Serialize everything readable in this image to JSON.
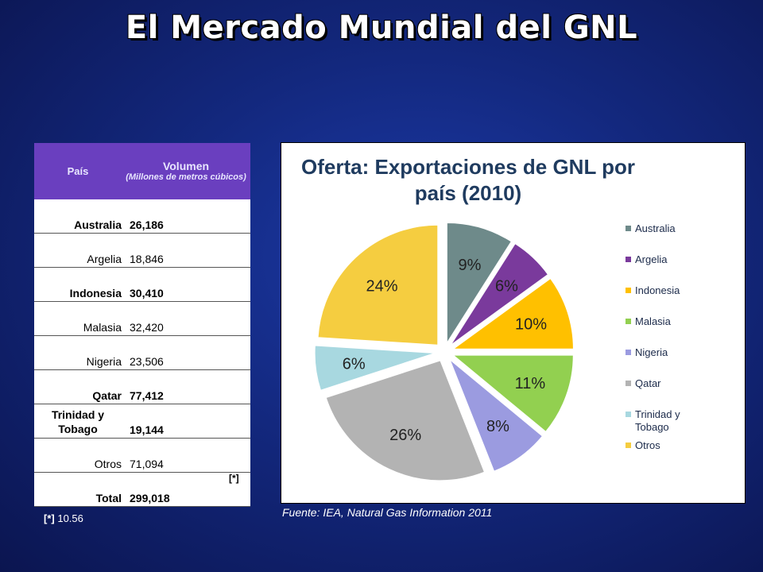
{
  "title": "El Mercado Mundial del GNL",
  "table": {
    "header_country": "País",
    "header_volume": "Volumen",
    "header_unit": "(Millones de metros cúbicos)",
    "rows": [
      {
        "country": "Australia",
        "volume": "26,186",
        "note": ""
      },
      {
        "country": "Argelia",
        "volume": "18,846",
        "note": ""
      },
      {
        "country": "Indonesia",
        "volume": "30,410",
        "note": ""
      },
      {
        "country": "Malasia",
        "volume": "32,420",
        "note": ""
      },
      {
        "country": "Nigeria",
        "volume": "23,506",
        "note": ""
      },
      {
        "country": "Qatar",
        "volume": "77,412",
        "note": ""
      },
      {
        "country": "Trinidad y Tobago",
        "volume": "19,144",
        "note": ""
      },
      {
        "country": "Otros",
        "volume": "71,094",
        "note": ""
      },
      {
        "country": "Total",
        "volume": "299,018",
        "note": "[*]"
      }
    ]
  },
  "footnote": {
    "mark": "[*]",
    "text": "10.56"
  },
  "source": "Fuente: IEA, Natural Gas Information 2011",
  "colors": {
    "Australia": "#6e8a8a",
    "Argelia": "#7a3a9c",
    "Indonesia": "#ffc000",
    "Malasia": "#92d050",
    "Nigeria": "#9b9be0",
    "Qatar": "#b3b3b3",
    "Trinidad y Tobago": "#a8d8e0",
    "Otros": "#f5cd40"
  },
  "chart_data": {
    "type": "pie",
    "title": "Oferta: Exportaciones de GNL por país (2010)",
    "labels": [
      "Australia",
      "Argelia",
      "Indonesia",
      "Malasia",
      "Nigeria",
      "Qatar",
      "Trinidad y Tobago",
      "Otros"
    ],
    "values": [
      9,
      6,
      10,
      11,
      8,
      26,
      6,
      24
    ],
    "data_labels": [
      "9%",
      "6%",
      "10%",
      "11%",
      "8%",
      "26%",
      "6%",
      "24%"
    ],
    "legend_position": "right",
    "exploded": true
  }
}
